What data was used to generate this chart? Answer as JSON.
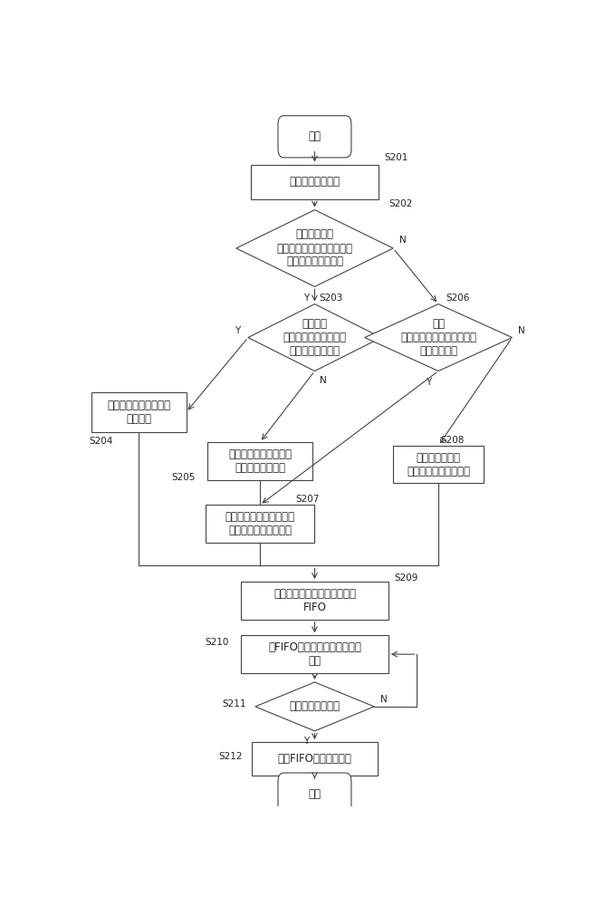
{
  "bg_color": "#ffffff",
  "line_color": "#444444",
  "text_color": "#222222",
  "font_size": 8.5,
  "tag_font_size": 7.5,
  "nodes": {
    "start_label": "开始",
    "end_label": "结束",
    "s201_label": "接收多个交易记录",
    "s202_label": "判断多个交易\n记录中是否包含状态标志为\n交易成功的交易记录",
    "s203_label": "判断状态\n标志为交易成功的交易\n记录个数是否唯一",
    "s204_label": "将唯一的交易记录作为\n正确记录",
    "s205_label": "将交易时间最短的交易\n记录作为正确记录",
    "s206_label": "判断\n完成程度最高的交易记录的\n个数是否唯一",
    "s207_label": "将唯一的完成程度最高的\n交易记录作为正确记录",
    "s208_label": "将交易时间最短\n交易记录作为正确记录",
    "s209_label": "将上述所得的正确记录加入到\nFIFO",
    "s210_label": "将FIFO中的正确记录上传到服\n务器",
    "s211_label": "判断反馈是否成功",
    "s212_label": "删除FIFO中的正确记录"
  },
  "yn": {
    "Y": "Y",
    "N": "N"
  }
}
